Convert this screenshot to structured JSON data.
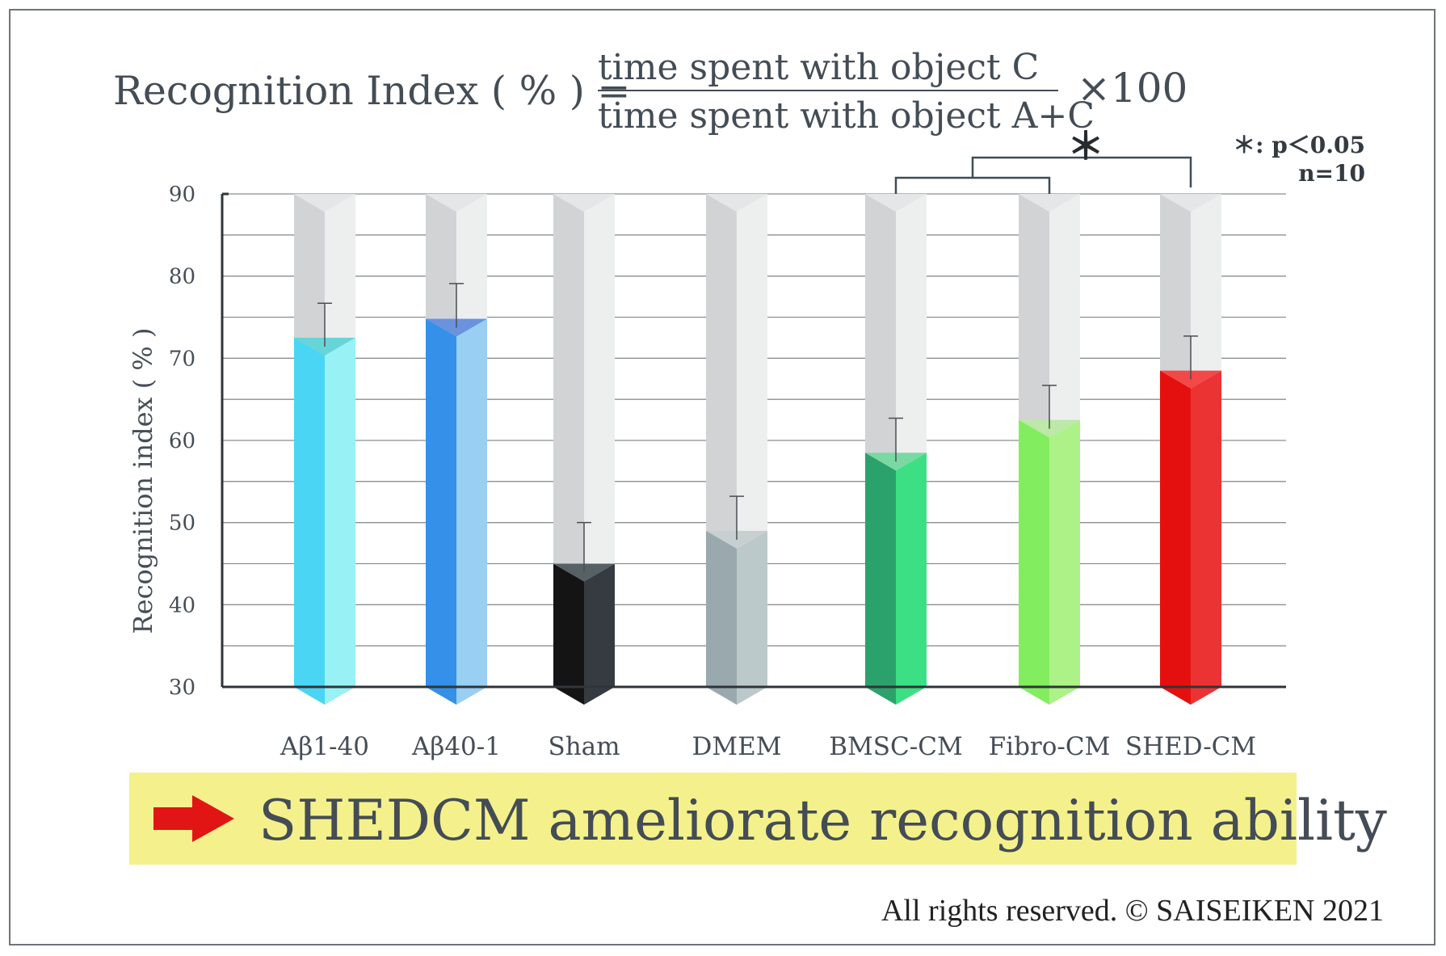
{
  "formula": {
    "lhs": "Recognition Index ( % ) =",
    "numerator": "time spent with object C",
    "denominator": "time spent with object A+C",
    "multiplier": "×100"
  },
  "stats_note": {
    "line1": "＊: p＜0.05",
    "line2": "n=10"
  },
  "banner": {
    "text": "SHEDCM ameliorate recognition ability"
  },
  "copyright": "All rights reserved. © SAISEIKEN  2021",
  "colors": {
    "bar_front": [
      "#4bd5f5",
      "#3490e8",
      "#151414",
      "#99a9ae",
      "#2ba26b",
      "#82ee5f",
      "#e41010"
    ],
    "bar_side": [
      "#98f1f4",
      "#98cff3",
      "#353b40",
      "#bcc9cb",
      "#3ddf85",
      "#adf287",
      "#ec3333"
    ],
    "bar_top": [
      "#67d4d8",
      "#6b92dc",
      "#566165",
      "#c8cfd0",
      "#7ad9a3",
      "#bce8a8",
      "#f24848"
    ],
    "track_front": "#d2d3d5",
    "track_side": "#edefef",
    "banner": "#f4f18c",
    "arrow": "#e21515"
  },
  "chart_data": {
    "type": "bar",
    "ylabel": "Recognition index ( % )",
    "ylim": [
      30,
      90
    ],
    "yticks": [
      30,
      40,
      50,
      60,
      70,
      80,
      90
    ],
    "categories": [
      "Aβ1-40",
      "Aβ40-1",
      "Sham",
      "DMEM",
      "BMSC-CM",
      "Fibro-CM",
      "SHED-CM"
    ],
    "values": [
      72.5,
      74.8,
      45.0,
      49.0,
      58.5,
      62.5,
      68.5
    ],
    "error": [
      4.2,
      4.3,
      5.0,
      4.2,
      4.2,
      4.2,
      4.2
    ],
    "significance": {
      "marker": "＊",
      "groups": [
        "BMSC-CM",
        "Fibro-CM"
      ],
      "versus": "SHED-CM"
    },
    "grid": true
  }
}
